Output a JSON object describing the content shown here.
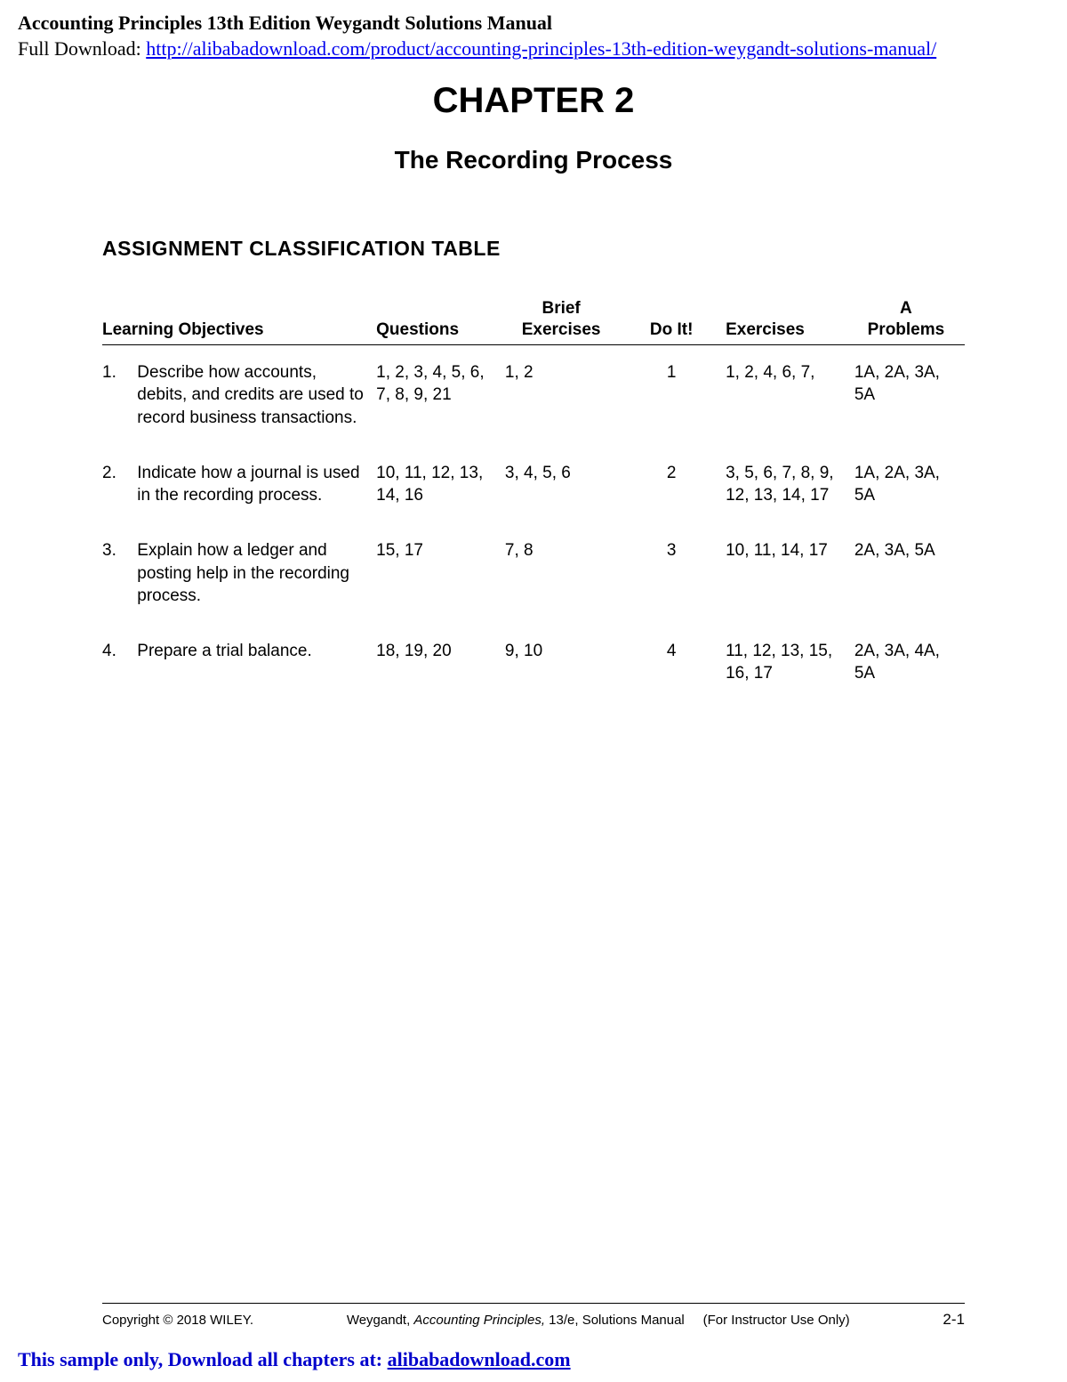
{
  "header": {
    "title_bold": "Accounting Principles 13th Edition Weygandt Solutions Manual",
    "download_prefix": "Full Download: ",
    "download_url": "http://alibabadownload.com/product/accounting-principles-13th-edition-weygandt-solutions-manual/"
  },
  "chapter": {
    "title": "CHAPTER 2",
    "subtitle": "The Recording Process"
  },
  "section_heading": "ASSIGNMENT CLASSIFICATION TABLE",
  "table": {
    "columns": {
      "lo": "Learning Objectives",
      "questions": "Questions",
      "brief_ex_top": "Brief",
      "brief_ex_bot": "Exercises",
      "doit": "Do It!",
      "exercises": "Exercises",
      "a_top": "A",
      "a_bot": "Problems"
    },
    "rows": [
      {
        "num": "1.",
        "lo": "Describe how accounts, debits, and credits are used to record business transactions.",
        "questions": "1, 2, 3, 4, 5, 6, 7, 8, 9, 21",
        "brief": "1, 2",
        "doit": "1",
        "exercises": "1, 2, 4, 6, 7,",
        "aproblems": "1A, 2A, 3A, 5A"
      },
      {
        "num": "2.",
        "lo": "Indicate how a journal is used in the recording process.",
        "questions": "10, 11, 12, 13, 14, 16",
        "brief": "3, 4, 5, 6",
        "doit": "2",
        "exercises": "3, 5, 6, 7, 8, 9, 12, 13, 14, 17",
        "aproblems": "1A, 2A, 3A, 5A"
      },
      {
        "num": "3.",
        "lo": "Explain how a ledger and posting help in the recording process.",
        "questions": "15, 17",
        "brief": "7, 8",
        "doit": "3",
        "exercises": "10, 11, 14, 17",
        "aproblems": "2A, 3A, 5A"
      },
      {
        "num": "4.",
        "lo": "Prepare a trial balance.",
        "questions": "18, 19, 20",
        "brief": "9, 10",
        "doit": "4",
        "exercises": "11, 12, 13, 15, 16, 17",
        "aproblems": "2A, 3A, 4A, 5A"
      }
    ]
  },
  "footer": {
    "copyright": "Copyright © 2018 WILEY.",
    "mid_prefix": "Weygandt, ",
    "mid_ital": "Accounting Principles,",
    "mid_suffix": " 13/e, Solutions Manual",
    "instructor": "(For Instructor Use Only)",
    "page": "2-1"
  },
  "sample_banner": {
    "text_prefix": "This sample only, Download all chapters at: ",
    "link_text": "alibabadownload.com"
  }
}
